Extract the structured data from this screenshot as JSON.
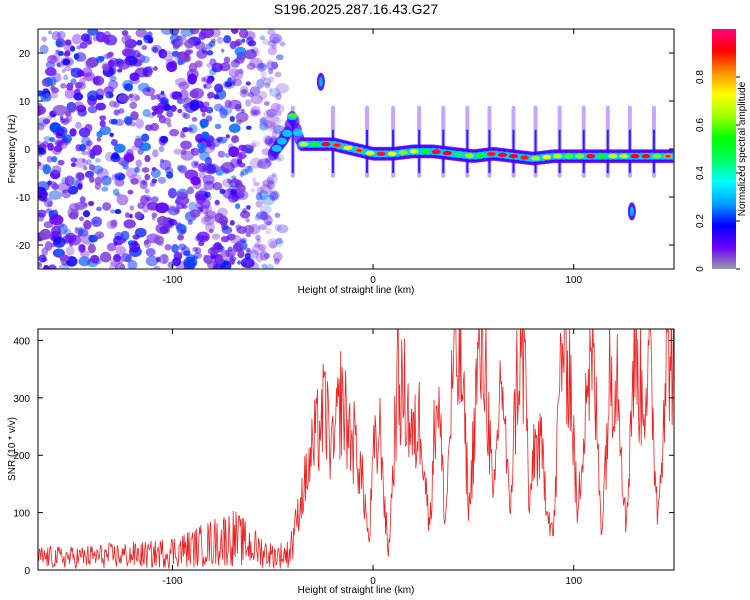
{
  "title": "S196.2025.287.16.43.G27",
  "chart_data": [
    {
      "type": "heatmap",
      "xlabel": "Height of straight line (km)",
      "ylabel": "Frequency (Hz)",
      "xlim": [
        -167,
        150
      ],
      "ylim": [
        -25,
        25
      ],
      "xticks": [
        -100,
        0,
        100
      ],
      "yticks": [
        -20,
        -10,
        0,
        10,
        20
      ],
      "colorbar": {
        "label": "Normalized spectral amplitude",
        "range": [
          0,
          1
        ],
        "ticks": [
          0,
          0.2,
          0.4,
          0.6,
          0.8
        ],
        "colormap": [
          "#9a9aa6",
          "#6b00ff",
          "#0000ff",
          "#00a0ff",
          "#00ffff",
          "#00ff60",
          "#00ff00",
          "#a0ff00",
          "#ffff00",
          "#ff9000",
          "#ff0000",
          "#ff0080"
        ]
      },
      "noise_region": {
        "x": [
          -167,
          -45
        ],
        "y": [
          -25,
          25
        ],
        "amplitude": [
          0.05,
          0.25
        ]
      },
      "signal_trace": {
        "x": [
          -50,
          -43,
          -40,
          -36,
          -30,
          -20,
          -10,
          0,
          10,
          20,
          30,
          40,
          50,
          60,
          70,
          80,
          90,
          100,
          110,
          120,
          130,
          140,
          150
        ],
        "y": [
          -1,
          3,
          7,
          1,
          1,
          1,
          0,
          -1,
          -1,
          -0.5,
          -0.5,
          -1,
          -1.5,
          -1,
          -1.5,
          -2,
          -1.5,
          -1.5,
          -1.5,
          -1.5,
          -1.5,
          -1.5,
          -1.5
        ],
        "peak_amplitude": 0.95
      },
      "spikes": {
        "x": [
          -40,
          -20,
          -3,
          10,
          23,
          35,
          47,
          58,
          70,
          81,
          93,
          105,
          117,
          128,
          140
        ],
        "extent_hz": [
          -6,
          9
        ]
      },
      "isolated_blobs": [
        {
          "x": -26,
          "y": 14
        },
        {
          "x": 129,
          "y": -13
        }
      ]
    },
    {
      "type": "line",
      "xlabel": "Height of straight line (km)",
      "ylabel": "SNR (10 * v/v)",
      "xlim": [
        -167,
        150
      ],
      "ylim": [
        0,
        420
      ],
      "xticks": [
        -100,
        0,
        100
      ],
      "yticks": [
        0,
        100,
        200,
        300,
        400
      ],
      "color": "#ee2222",
      "series": {
        "x": [
          -167,
          -150,
          -130,
          -110,
          -90,
          -80,
          -70,
          -60,
          -50,
          -42,
          -38,
          -34,
          -30,
          -26,
          -24,
          -20,
          -16,
          -12,
          -8,
          -4,
          -2,
          0,
          4,
          6,
          8,
          12,
          16,
          20,
          24,
          28,
          32,
          36,
          40,
          44,
          48,
          52,
          56,
          60,
          64,
          68,
          72,
          76,
          78,
          80,
          84,
          88,
          90,
          94,
          98,
          102,
          106,
          110,
          114,
          118,
          122,
          126,
          130,
          134,
          138,
          142,
          146,
          150
        ],
        "y": [
          22,
          22,
          25,
          27,
          38,
          48,
          58,
          40,
          25,
          28,
          90,
          150,
          210,
          260,
          280,
          200,
          300,
          240,
          210,
          120,
          40,
          190,
          240,
          90,
          40,
          320,
          300,
          220,
          270,
          70,
          330,
          80,
          360,
          350,
          100,
          350,
          370,
          100,
          360,
          95,
          350,
          360,
          80,
          220,
          200,
          90,
          60,
          400,
          360,
          80,
          330,
          350,
          70,
          340,
          360,
          70,
          380,
          300,
          360,
          90,
          380,
          370
        ]
      }
    }
  ]
}
